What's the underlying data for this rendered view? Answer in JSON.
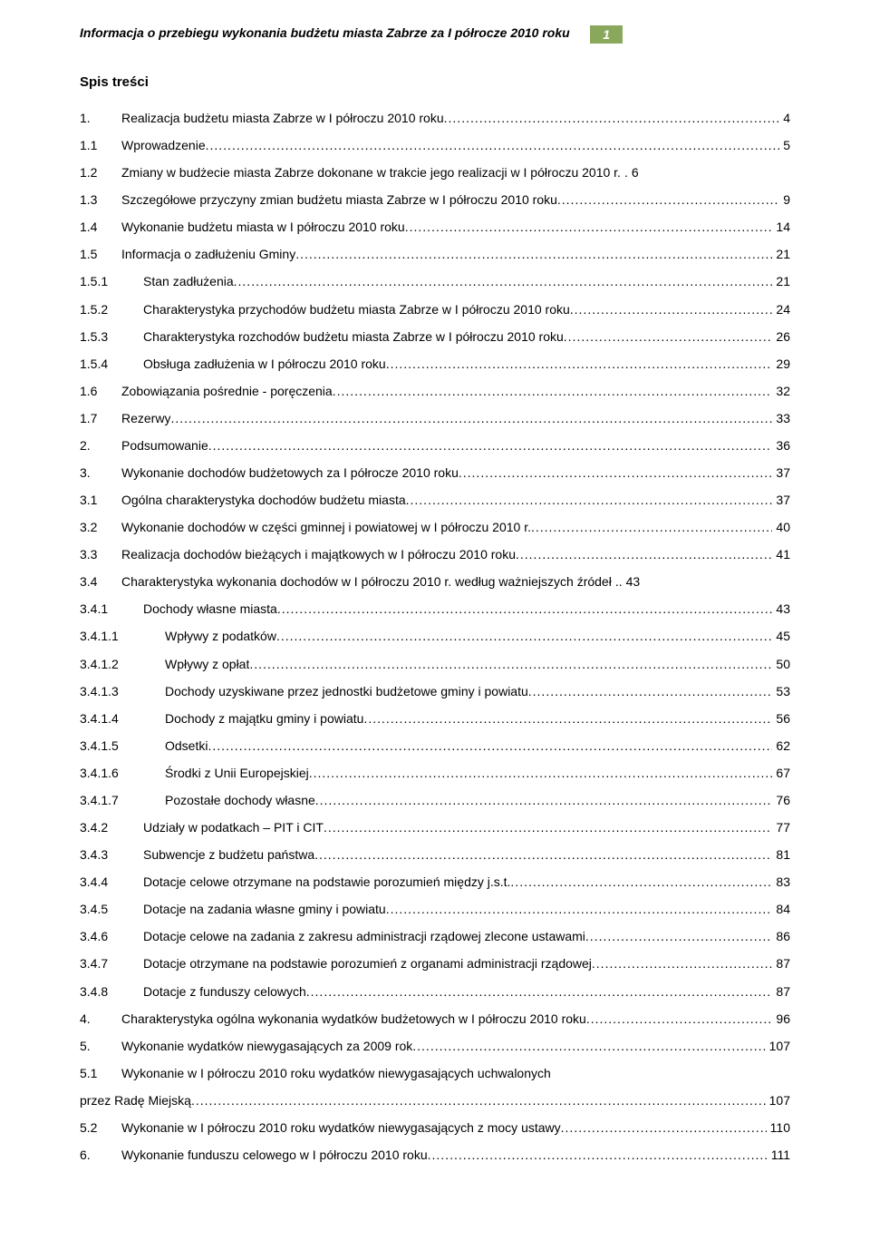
{
  "header": {
    "title": "Informacja o przebiegu wykonania budżetu miasta Zabrze za I półrocze 2010 roku",
    "page_number": "1",
    "page_badge_bg": "#8aa85c",
    "page_badge_fg": "#ffffff"
  },
  "toc_heading": "Spis treści",
  "toc": [
    {
      "n": "1.",
      "indent": 46,
      "t": "Realizacja budżetu miasta Zabrze w I półroczu 2010 roku",
      "p": "4"
    },
    {
      "n": "1.1",
      "indent": 46,
      "t": "Wprowadzenie",
      "p": "5"
    },
    {
      "n": "1.2",
      "indent": 46,
      "t": "Zmiany w budżecie miasta Zabrze dokonane w trakcie jego realizacji w I półroczu 2010 r.",
      "p": "6",
      "leader": ". "
    },
    {
      "n": "1.3",
      "indent": 46,
      "t": "Szczegółowe przyczyny zmian budżetu miasta Zabrze w I półroczu 2010 roku",
      "p": "9"
    },
    {
      "n": "1.4",
      "indent": 46,
      "t": "Wykonanie budżetu miasta w I półroczu 2010 roku",
      "p": "14"
    },
    {
      "n": "1.5",
      "indent": 46,
      "t": "Informacja o zadłużeniu Gminy",
      "p": "21"
    },
    {
      "n": "1.5.1",
      "indent": 70,
      "t": "Stan zadłużenia",
      "p": "21"
    },
    {
      "n": "1.5.2",
      "indent": 70,
      "t": "Charakterystyka przychodów budżetu miasta Zabrze w I półroczu 2010 roku",
      "p": "24"
    },
    {
      "n": "1.5.3",
      "indent": 70,
      "t": "Charakterystyka rozchodów budżetu miasta Zabrze w I półroczu 2010 roku",
      "p": "26"
    },
    {
      "n": "1.5.4",
      "indent": 70,
      "t": "Obsługa zadłużenia w I półroczu 2010 roku",
      "p": "29"
    },
    {
      "n": "1.6",
      "indent": 46,
      "t": "Zobowiązania pośrednie - poręczenia",
      "p": "32"
    },
    {
      "n": "1.7",
      "indent": 46,
      "t": "Rezerwy",
      "p": "33"
    },
    {
      "n": "2.",
      "indent": 46,
      "t": "Podsumowanie",
      "p": "36"
    },
    {
      "n": "3.",
      "indent": 46,
      "t": "Wykonanie dochodów budżetowych za I półrocze 2010 roku",
      "p": "37"
    },
    {
      "n": "3.1",
      "indent": 46,
      "t": "Ogólna charakterystyka dochodów budżetu miasta",
      "p": "37"
    },
    {
      "n": "3.2",
      "indent": 46,
      "t": "Wykonanie dochodów w części gminnej i powiatowej w I półroczu 2010 r.",
      "p": "40"
    },
    {
      "n": "3.3",
      "indent": 46,
      "t": "Realizacja dochodów bieżących i majątkowych w I półroczu 2010 roku",
      "p": "41"
    },
    {
      "n": "3.4",
      "indent": 46,
      "t": "Charakterystyka wykonania dochodów w I półroczu 2010 r. według ważniejszych źródeł",
      "p": "43",
      "leader": ".. "
    },
    {
      "n": "3.4.1",
      "indent": 70,
      "t": "Dochody własne miasta",
      "p": "43"
    },
    {
      "n": "3.4.1.1",
      "indent": 94,
      "t": "Wpływy z podatków",
      "p": "45"
    },
    {
      "n": "3.4.1.2",
      "indent": 94,
      "t": "Wpływy z opłat",
      "p": "50"
    },
    {
      "n": "3.4.1.3",
      "indent": 94,
      "t": "Dochody uzyskiwane przez jednostki budżetowe gminy i powiatu",
      "p": "53"
    },
    {
      "n": "3.4.1.4",
      "indent": 94,
      "t": "Dochody z majątku gminy i powiatu",
      "p": "56"
    },
    {
      "n": "3.4.1.5",
      "indent": 94,
      "t": "Odsetki",
      "p": "62"
    },
    {
      "n": "3.4.1.6",
      "indent": 94,
      "t": "Środki z Unii Europejskiej",
      "p": "67"
    },
    {
      "n": "3.4.1.7",
      "indent": 94,
      "t": "Pozostałe dochody własne",
      "p": "76"
    },
    {
      "n": "3.4.2",
      "indent": 70,
      "t": "Udziały w podatkach – PIT i CIT",
      "p": "77"
    },
    {
      "n": "3.4.3",
      "indent": 70,
      "t": "Subwencje z budżetu państwa",
      "p": "81"
    },
    {
      "n": "3.4.4",
      "indent": 70,
      "t": "Dotacje celowe otrzymane na podstawie porozumień między j.s.t.",
      "p": "83"
    },
    {
      "n": "3.4.5",
      "indent": 70,
      "t": "Dotacje na zadania własne gminy i powiatu",
      "p": "84"
    },
    {
      "n": "3.4.6",
      "indent": 70,
      "t": "Dotacje celowe na zadania z zakresu administracji rządowej zlecone ustawami",
      "p": "86"
    },
    {
      "n": "3.4.7",
      "indent": 70,
      "t": "Dotacje otrzymane na podstawie porozumień z organami administracji rządowej",
      "p": "87"
    },
    {
      "n": "3.4.8",
      "indent": 70,
      "t": "Dotacje z funduszy celowych",
      "p": "87"
    },
    {
      "n": "4.",
      "indent": 46,
      "t": "Charakterystyka ogólna wykonania wydatków budżetowych w I półroczu 2010 roku",
      "p": "96"
    },
    {
      "n": "5.",
      "indent": 46,
      "t": "Wykonanie wydatków niewygasających za 2009 rok",
      "p": "107"
    },
    {
      "n": "5.1",
      "indent": 46,
      "t": "Wykonanie w I półroczu 2010 roku wydatków niewygasających uchwalonych przez Radę Miejską",
      "p": "107",
      "wrap": true
    },
    {
      "n": "5.2",
      "indent": 46,
      "t": "Wykonanie w I półroczu 2010 roku wydatków niewygasających z mocy ustawy",
      "p": "110"
    },
    {
      "n": "6.",
      "indent": 46,
      "t": "Wykonanie funduszu celowego w I półroczu 2010 roku",
      "p": "111"
    }
  ]
}
